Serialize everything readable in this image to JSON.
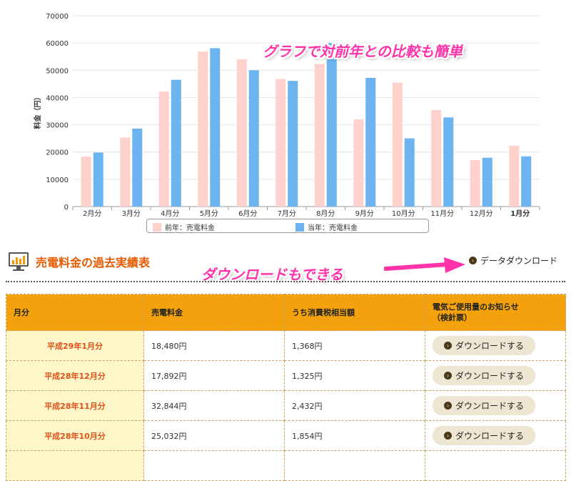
{
  "chart_data": {
    "type": "bar",
    "ylabel": "料金（円）",
    "ylim": [
      0,
      70000
    ],
    "yticks": [
      "0",
      "10000",
      "20000",
      "30000",
      "40000",
      "50000",
      "60000",
      "70000"
    ],
    "grid": true,
    "categories": [
      "2月分",
      "3月分",
      "4月分",
      "5月分",
      "6月分",
      "7月分",
      "8月分",
      "9月分",
      "10月分",
      "11月分",
      "12月分",
      "1月分"
    ],
    "series": [
      {
        "name": "前年：売電料金",
        "color": "#ffd1cc",
        "values": [
          18300,
          25300,
          42200,
          56800,
          54000,
          46800,
          52300,
          32000,
          45500,
          35400,
          17000,
          22300
        ]
      },
      {
        "name": "当年：売電料金",
        "color": "#6cb4f0",
        "values": [
          19800,
          28600,
          46500,
          58100,
          50000,
          46100,
          60000,
          47200,
          25000,
          32700,
          17900,
          18400
        ]
      }
    ],
    "legend_position": "bottom"
  },
  "annotations": {
    "top": "グラフで対前年との比較も簡単",
    "middle": "ダウンロードもできる"
  },
  "section": {
    "title": "売電料金の過去実績表",
    "icon": "monitor-chart-icon",
    "data_download_label": "データダウンロード"
  },
  "table": {
    "headers": {
      "month": "月分",
      "amount": "売電料金",
      "tax": "うち消費税相当額",
      "notice_line1": "電気ご使用量のお知らせ",
      "notice_line2": "（検針票）"
    },
    "button_label": "ダウンロードする",
    "rows": [
      {
        "month": "平成29年1月分",
        "amount": "18,480円",
        "tax": "1,368円"
      },
      {
        "month": "平成28年12月分",
        "amount": "17,892円",
        "tax": "1,325円"
      },
      {
        "month": "平成28年11月分",
        "amount": "32,844円",
        "tax": "2,432円"
      },
      {
        "month": "平成28年10月分",
        "amount": "25,032円",
        "tax": "1,854円"
      }
    ]
  },
  "colors": {
    "accent_orange": "#e65a00",
    "header_orange": "#f3a20d",
    "annotation_pink": "#ff33aa"
  }
}
